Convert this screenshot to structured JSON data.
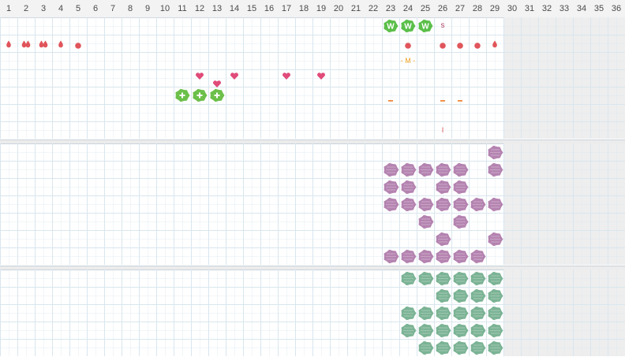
{
  "calendar": {
    "days": [
      "1",
      "2",
      "3",
      "4",
      "5",
      "6",
      "7",
      "8",
      "9",
      "10",
      "11",
      "12",
      "13",
      "14",
      "15",
      "16",
      "17",
      "18",
      "19",
      "20",
      "21",
      "22",
      "23",
      "24",
      "25",
      "26",
      "27",
      "28",
      "29",
      "30",
      "31",
      "32",
      "33",
      "34",
      "35",
      "36"
    ],
    "current_day": 29
  },
  "colors": {
    "drop": "#e0555b",
    "dot": "#e0555b",
    "heart": "#e04b7a",
    "cross": "#6cc04a",
    "w_badge": "#5bbf4a",
    "dash": "#f0883c",
    "s_text": "#b0476b",
    "m_text": "#f0a020",
    "i_text": "#e0555b",
    "purple_blob": "#b483b0",
    "green_blob": "#7bb395"
  },
  "top_section": {
    "rows": [
      {
        "marks": [
          {
            "day": 23,
            "type": "badge",
            "label": "W"
          },
          {
            "day": 24,
            "type": "badge",
            "label": "W"
          },
          {
            "day": 25,
            "type": "badge",
            "label": "W"
          },
          {
            "day": 26,
            "type": "text",
            "label": "s",
            "color": "s_text"
          }
        ]
      },
      {
        "marks": [
          {
            "day": 1,
            "type": "drop",
            "count": 1
          },
          {
            "day": 2,
            "type": "drop",
            "count": 2
          },
          {
            "day": 3,
            "type": "drop",
            "count": 2
          },
          {
            "day": 4,
            "type": "drop",
            "count": 1
          },
          {
            "day": 5,
            "type": "dot"
          },
          {
            "day": 24,
            "type": "dot"
          },
          {
            "day": 26,
            "type": "dot"
          },
          {
            "day": 27,
            "type": "dot"
          },
          {
            "day": 28,
            "type": "dot"
          },
          {
            "day": 29,
            "type": "drop",
            "count": 1
          }
        ]
      },
      {
        "marks": [
          {
            "day": 24,
            "type": "text",
            "label": "- M -",
            "color": "m_text"
          }
        ]
      },
      {
        "marks": [
          {
            "day": 12,
            "type": "heart",
            "offset": -1
          },
          {
            "day": 13,
            "type": "heart",
            "offset": 1
          },
          {
            "day": 14,
            "type": "heart",
            "offset": -1
          },
          {
            "day": 17,
            "type": "heart",
            "offset": -1
          },
          {
            "day": 19,
            "type": "heart",
            "offset": -1
          }
        ]
      },
      {
        "marks": [
          {
            "day": 11,
            "type": "cross"
          },
          {
            "day": 12,
            "type": "cross"
          },
          {
            "day": 13,
            "type": "cross"
          },
          {
            "day": 23,
            "type": "dash"
          },
          {
            "day": 26,
            "type": "dash"
          },
          {
            "day": 27,
            "type": "dash"
          }
        ]
      },
      {
        "marks": []
      },
      {
        "marks": [
          {
            "day": 26,
            "type": "text",
            "label": "I",
            "color": "i_text"
          }
        ]
      }
    ]
  },
  "middle_section": {
    "blob_color": "purple_blob",
    "rows": [
      [
        29
      ],
      [
        23,
        24,
        25,
        26,
        27,
        29
      ],
      [
        23,
        24,
        26,
        27
      ],
      [
        23,
        24,
        25,
        26,
        27,
        28,
        29
      ],
      [
        25,
        27
      ],
      [
        26,
        29
      ],
      [
        23,
        24,
        25,
        26,
        27,
        28
      ]
    ]
  },
  "bottom_section": {
    "blob_color": "green_blob",
    "rows": [
      [
        24,
        25,
        26,
        27,
        28,
        29
      ],
      [
        26,
        27,
        28,
        29
      ],
      [
        24,
        25,
        26,
        27,
        28,
        29
      ],
      [
        24,
        25,
        26,
        27,
        28,
        29
      ],
      [
        25,
        26,
        27,
        28,
        29
      ]
    ]
  }
}
